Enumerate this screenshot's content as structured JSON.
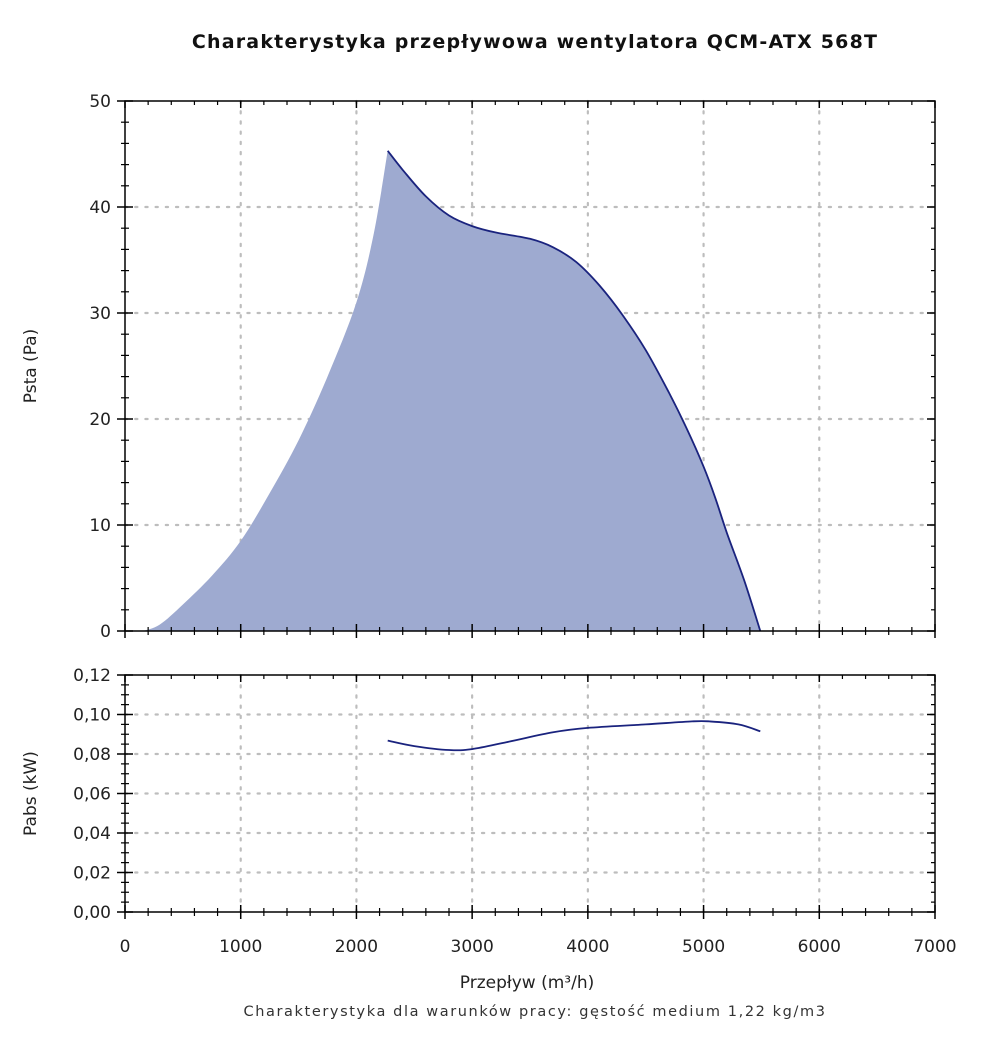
{
  "chart_data": [
    {
      "type": "area",
      "title": "Charakterystyka przepływowa wentylatora QCM-ATX 568T",
      "xlabel": "Przepływ (m³/h)",
      "ylabel": "Psta (Pa)",
      "xlim": [
        0,
        7000
      ],
      "ylim": [
        0,
        50
      ],
      "x_ticks": [
        "0",
        "1000",
        "2000",
        "3000",
        "4000",
        "5000",
        "6000",
        "7000"
      ],
      "y_ticks": [
        "0",
        "10",
        "20",
        "30",
        "40",
        "50"
      ],
      "grid": true,
      "fill_color": "#9eaad0",
      "line_color": "#1a237e",
      "series": [
        {
          "name": "Psta",
          "rising_fill_only": {
            "x": [
              150,
              300,
              500,
              750,
              1000,
              1250,
              1500,
              1750,
              2000,
              2150,
              2270
            ],
            "y": [
              0,
              0.6,
              2.5,
              5.2,
              8.5,
              13,
              18,
              24,
              31,
              37.5,
              45.3
            ]
          },
          "curve": {
            "x": [
              2270,
              2400,
              2600,
              2800,
              3000,
              3200,
              3500,
              3700,
              3900,
              4100,
              4300,
              4500,
              4700,
              4850,
              5000,
              5100,
              5200,
              5350,
              5490
            ],
            "y": [
              45.3,
              43.5,
              41,
              39.2,
              38.2,
              37.6,
              37,
              36.2,
              34.8,
              32.6,
              29.8,
              26.5,
              22.5,
              19.2,
              15.5,
              12.6,
              9.3,
              4.8,
              0
            ]
          }
        }
      ]
    },
    {
      "type": "line",
      "xlabel": "Przepływ (m³/h)",
      "ylabel": "Pabs (kW)",
      "xlim": [
        0,
        7000
      ],
      "ylim": [
        0,
        0.12
      ],
      "x_ticks": [
        "0",
        "1000",
        "2000",
        "3000",
        "4000",
        "5000",
        "6000",
        "7000"
      ],
      "y_ticks": [
        "0,00",
        "0,02",
        "0,04",
        "0,06",
        "0,08",
        "0,10",
        "0,12"
      ],
      "grid": true,
      "line_color": "#1a237e",
      "series": [
        {
          "name": "Pabs",
          "x": [
            2270,
            2500,
            2800,
            3000,
            3300,
            3700,
            4000,
            4500,
            4900,
            5050,
            5300,
            5490
          ],
          "y": [
            0.0868,
            0.084,
            0.082,
            0.0825,
            0.086,
            0.091,
            0.0932,
            0.095,
            0.0965,
            0.0965,
            0.095,
            0.0915
          ]
        }
      ]
    }
  ],
  "footnote": "Charakterystyka dla warunków pracy: gęstość medium 1,22 kg/m3"
}
